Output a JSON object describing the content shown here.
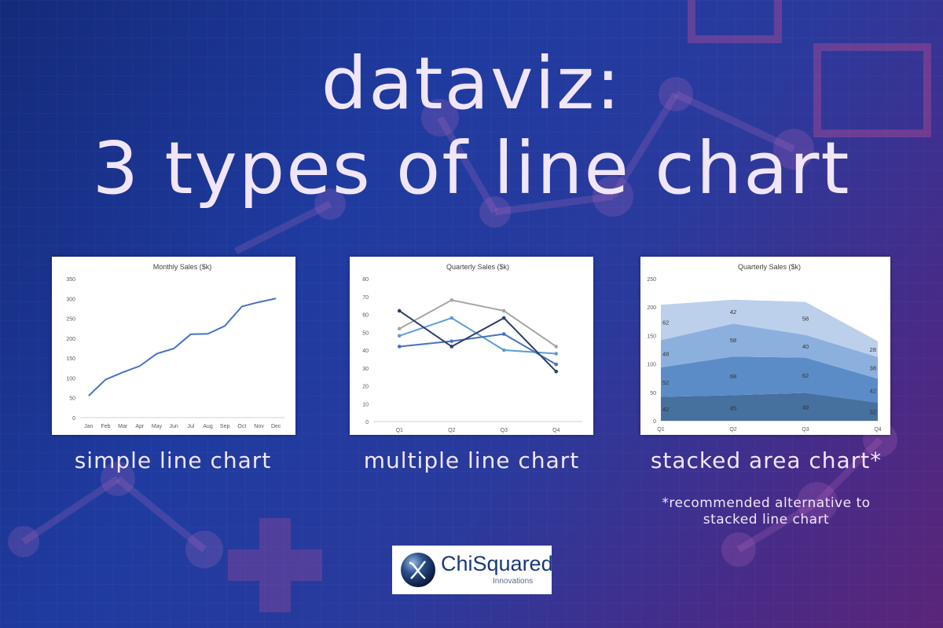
{
  "title": {
    "line1": "dataviz:",
    "line2": "3 types of line chart"
  },
  "captions": {
    "chart1": "simple line chart",
    "chart2": "multiple line chart",
    "chart3": "stacked area chart*",
    "note_line1": "*recommended alternative to",
    "note_line2": "stacked line chart"
  },
  "logo": {
    "name": "ChiSquared",
    "subtitle": "Innovations"
  },
  "colors": {
    "background_start": "#142a7a",
    "background_end": "#5a2578",
    "text": "#f1e6f8",
    "line_blue": "#4472c4"
  },
  "chart_data": [
    {
      "type": "line",
      "title": "Monthly Sales ($k)",
      "categories": [
        "Jan",
        "Feb",
        "Mar",
        "Apr",
        "May",
        "Jun",
        "Jul",
        "Aug",
        "Sep",
        "Oct",
        "Nov",
        "Dec"
      ],
      "series": [
        {
          "values": [
            55,
            96,
            114,
            130,
            161,
            174,
            210,
            211,
            231,
            280,
            291,
            300
          ],
          "color": "#4472c4"
        }
      ],
      "ylim": [
        0,
        350
      ],
      "yticks": [
        0,
        50,
        100,
        150,
        200,
        250,
        300,
        350
      ],
      "grid": false,
      "legend": "none"
    },
    {
      "type": "line",
      "title": "Quarterly Sales ($k)",
      "categories": [
        "Q1",
        "Q2",
        "Q3",
        "Q4"
      ],
      "series": [
        {
          "values": [
            52,
            68,
            62,
            42
          ],
          "color": "#a5a5a5"
        },
        {
          "values": [
            48,
            58,
            40,
            38
          ],
          "color": "#5b9bd5"
        },
        {
          "values": [
            42,
            45,
            49,
            32
          ],
          "color": "#4472c4"
        },
        {
          "values": [
            62,
            42,
            58,
            28
          ],
          "color": "#2e3f66"
        }
      ],
      "ylim": [
        0,
        80
      ],
      "yticks": [
        0,
        10,
        20,
        30,
        40,
        50,
        60,
        70,
        80
      ],
      "grid": false,
      "legend": "none"
    },
    {
      "type": "area",
      "stacked": true,
      "title": "Quarterly Sales ($k)",
      "categories": [
        "Q1",
        "Q2",
        "Q3",
        "Q4"
      ],
      "series": [
        {
          "values": [
            42,
            45,
            49,
            32
          ],
          "color": "#46709e"
        },
        {
          "values": [
            52,
            68,
            62,
            42
          ],
          "color": "#5b8cc7"
        },
        {
          "values": [
            48,
            58,
            40,
            38
          ],
          "color": "#8cb0de"
        },
        {
          "values": [
            62,
            42,
            58,
            28
          ],
          "color": "#bcd0ec"
        }
      ],
      "ylim": [
        0,
        250
      ],
      "yticks": [
        0,
        50,
        100,
        150,
        200,
        250
      ],
      "grid": false,
      "legend": "none"
    }
  ]
}
